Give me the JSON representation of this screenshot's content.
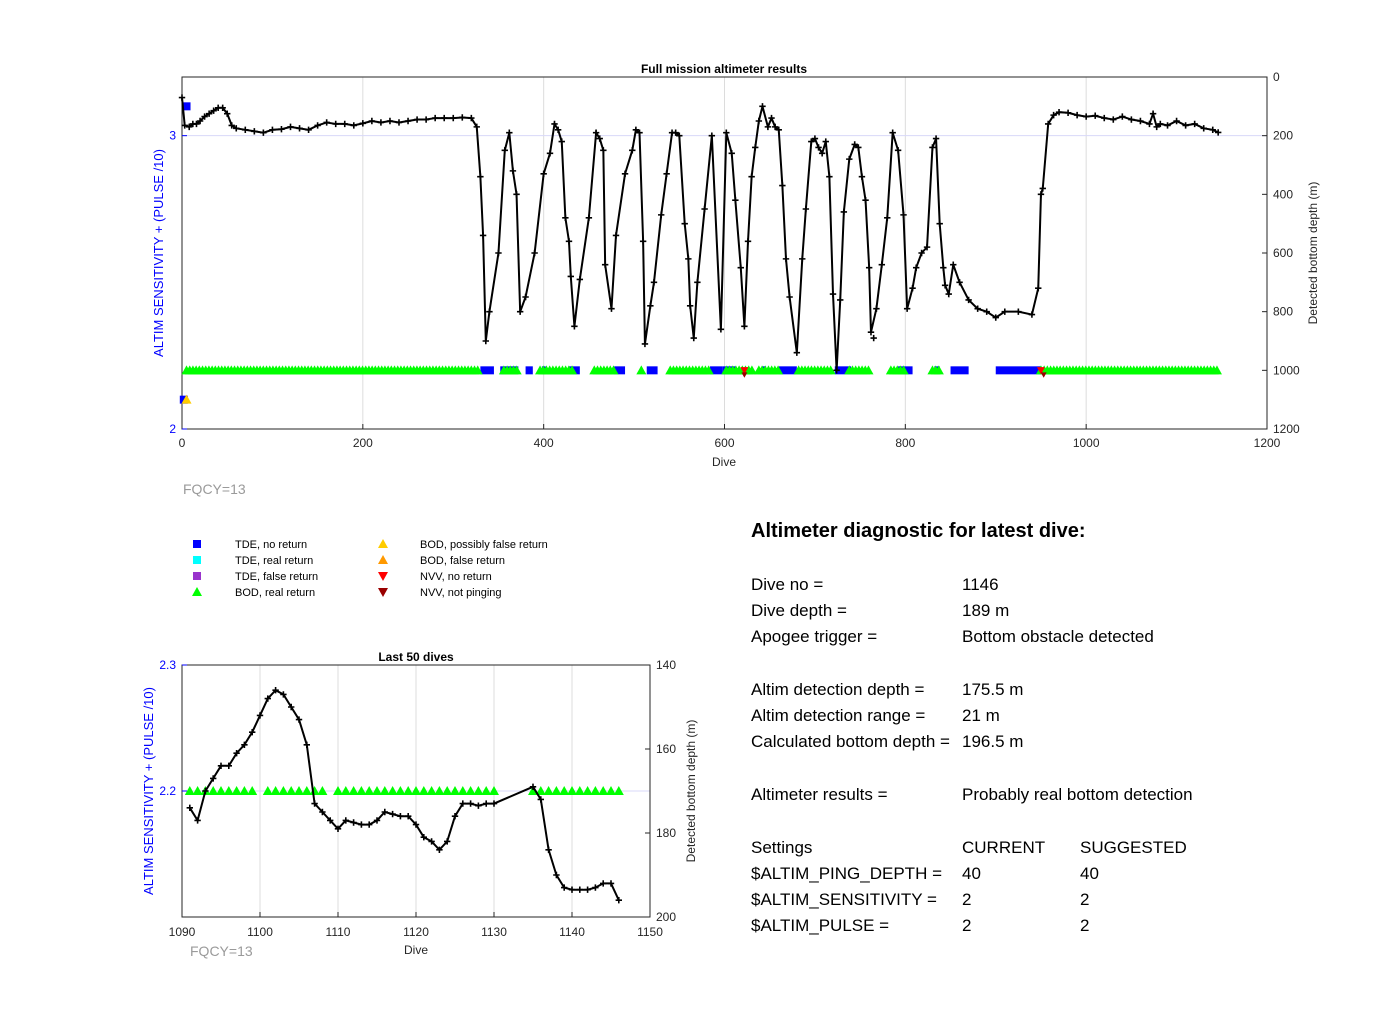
{
  "chart_data": [
    {
      "type": "line",
      "title": "Full mission altimeter results",
      "xlabel": "Dive",
      "ylabel_left": "ALTIM SENSITIVITY + (PULSE /10)",
      "ylabel_right": "Detected bottom depth (m)",
      "xlim": [
        0,
        1200
      ],
      "ylim_left": [
        2,
        3.2
      ],
      "ylim_right": [
        1200,
        0
      ],
      "x_ticks": [
        "0",
        "200",
        "400",
        "600",
        "800",
        "1000",
        "1200"
      ],
      "y_left_ticks": [
        "2",
        "3"
      ],
      "y_right_ticks": [
        "0",
        "200",
        "400",
        "600",
        "800",
        "1000",
        "1200"
      ],
      "grid": true,
      "footer": "FQCY=13",
      "depth_series": [
        [
          0,
          70
        ],
        [
          3,
          165
        ],
        [
          8,
          170
        ],
        [
          12,
          160
        ],
        [
          16,
          160
        ],
        [
          20,
          150
        ],
        [
          25,
          135
        ],
        [
          30,
          125
        ],
        [
          35,
          115
        ],
        [
          40,
          105
        ],
        [
          45,
          105
        ],
        [
          50,
          125
        ],
        [
          55,
          165
        ],
        [
          60,
          175
        ],
        [
          70,
          180
        ],
        [
          80,
          185
        ],
        [
          90,
          190
        ],
        [
          100,
          180
        ],
        [
          110,
          178
        ],
        [
          120,
          170
        ],
        [
          130,
          175
        ],
        [
          140,
          180
        ],
        [
          150,
          165
        ],
        [
          160,
          155
        ],
        [
          170,
          160
        ],
        [
          180,
          160
        ],
        [
          190,
          165
        ],
        [
          200,
          158
        ],
        [
          210,
          150
        ],
        [
          220,
          155
        ],
        [
          230,
          150
        ],
        [
          240,
          155
        ],
        [
          250,
          150
        ],
        [
          260,
          145
        ],
        [
          270,
          145
        ],
        [
          280,
          140
        ],
        [
          290,
          140
        ],
        [
          300,
          140
        ],
        [
          310,
          138
        ],
        [
          320,
          140
        ],
        [
          326,
          170
        ],
        [
          330,
          340
        ],
        [
          333,
          540
        ],
        [
          336,
          900
        ],
        [
          340,
          800
        ],
        [
          350,
          600
        ],
        [
          357,
          250
        ],
        [
          362,
          190
        ],
        [
          366,
          320
        ],
        [
          370,
          400
        ],
        [
          374,
          800
        ],
        [
          380,
          750
        ],
        [
          390,
          600
        ],
        [
          400,
          330
        ],
        [
          407,
          260
        ],
        [
          412,
          160
        ],
        [
          416,
          180
        ],
        [
          420,
          220
        ],
        [
          424,
          480
        ],
        [
          428,
          560
        ],
        [
          430,
          680
        ],
        [
          434,
          850
        ],
        [
          440,
          690
        ],
        [
          450,
          480
        ],
        [
          458,
          190
        ],
        [
          462,
          210
        ],
        [
          466,
          250
        ],
        [
          468,
          640
        ],
        [
          475,
          790
        ],
        [
          480,
          540
        ],
        [
          490,
          330
        ],
        [
          498,
          250
        ],
        [
          502,
          180
        ],
        [
          506,
          190
        ],
        [
          510,
          560
        ],
        [
          512,
          910
        ],
        [
          518,
          780
        ],
        [
          522,
          700
        ],
        [
          530,
          470
        ],
        [
          536,
          330
        ],
        [
          542,
          190
        ],
        [
          546,
          190
        ],
        [
          550,
          200
        ],
        [
          556,
          500
        ],
        [
          560,
          620
        ],
        [
          562,
          780
        ],
        [
          566,
          890
        ],
        [
          570,
          700
        ],
        [
          578,
          450
        ],
        [
          586,
          200
        ],
        [
          596,
          860
        ],
        [
          602,
          190
        ],
        [
          608,
          260
        ],
        [
          612,
          420
        ],
        [
          618,
          650
        ],
        [
          622,
          850
        ],
        [
          626,
          560
        ],
        [
          630,
          340
        ],
        [
          634,
          240
        ],
        [
          638,
          150
        ],
        [
          642,
          100
        ],
        [
          648,
          170
        ],
        [
          652,
          140
        ],
        [
          656,
          170
        ],
        [
          660,
          180
        ],
        [
          664,
          370
        ],
        [
          668,
          620
        ],
        [
          672,
          750
        ],
        [
          680,
          940
        ],
        [
          686,
          620
        ],
        [
          690,
          450
        ],
        [
          696,
          220
        ],
        [
          700,
          210
        ],
        [
          704,
          240
        ],
        [
          708,
          260
        ],
        [
          712,
          220
        ],
        [
          716,
          340
        ],
        [
          720,
          740
        ],
        [
          724,
          1000
        ],
        [
          728,
          760
        ],
        [
          732,
          460
        ],
        [
          738,
          280
        ],
        [
          744,
          230
        ],
        [
          748,
          240
        ],
        [
          752,
          340
        ],
        [
          756,
          420
        ],
        [
          760,
          650
        ],
        [
          762,
          870
        ],
        [
          768,
          790
        ],
        [
          774,
          640
        ],
        [
          780,
          480
        ],
        [
          786,
          190
        ],
        [
          792,
          250
        ],
        [
          798,
          470
        ],
        [
          802,
          790
        ],
        [
          808,
          720
        ],
        [
          812,
          650
        ],
        [
          818,
          600
        ],
        [
          824,
          580
        ],
        [
          830,
          240
        ],
        [
          834,
          210
        ],
        [
          838,
          500
        ],
        [
          842,
          650
        ],
        [
          844,
          710
        ],
        [
          848,
          740
        ],
        [
          853,
          640
        ],
        [
          860,
          700
        ],
        [
          870,
          760
        ],
        [
          880,
          790
        ],
        [
          890,
          800
        ],
        [
          900,
          820
        ],
        [
          910,
          800
        ],
        [
          925,
          800
        ],
        [
          940,
          810
        ],
        [
          947,
          720
        ],
        [
          950,
          400
        ],
        [
          952,
          380
        ],
        [
          958,
          160
        ],
        [
          964,
          130
        ],
        [
          970,
          120
        ],
        [
          980,
          122
        ],
        [
          990,
          130
        ],
        [
          1000,
          135
        ],
        [
          1010,
          132
        ],
        [
          1020,
          140
        ],
        [
          1030,
          145
        ],
        [
          1040,
          135
        ],
        [
          1050,
          145
        ],
        [
          1060,
          150
        ],
        [
          1070,
          160
        ],
        [
          1074,
          125
        ],
        [
          1078,
          170
        ],
        [
          1082,
          160
        ],
        [
          1090,
          165
        ],
        [
          1100,
          150
        ],
        [
          1110,
          165
        ],
        [
          1120,
          160
        ],
        [
          1130,
          175
        ],
        [
          1140,
          180
        ],
        [
          1146,
          189
        ]
      ],
      "markers": [
        {
          "label": "TDE, no return",
          "color": "#0000ff",
          "shape": "square"
        },
        {
          "label": "TDE, real return",
          "color": "#00ffff",
          "shape": "square"
        },
        {
          "label": "TDE, false return",
          "color": "#9933cc",
          "shape": "square"
        },
        {
          "label": "BOD, real return",
          "color": "#00ff00",
          "shape": "triangle-up"
        },
        {
          "label": "BOD, possibly false return",
          "color": "#ffcc00",
          "shape": "triangle-up"
        },
        {
          "label": "BOD, false return",
          "color": "#ff9900",
          "shape": "triangle-up"
        },
        {
          "label": "NVV, no return",
          "color": "#ff0000",
          "shape": "triangle-down"
        },
        {
          "label": "NVV, not pinging",
          "color": "#990000",
          "shape": "triangle-down"
        }
      ],
      "bod_real_segments": [
        [
          5,
          330
        ],
        [
          356,
          372
        ],
        [
          396,
          432
        ],
        [
          456,
          480
        ],
        [
          508,
          510
        ],
        [
          540,
          584
        ],
        [
          602,
          632
        ],
        [
          638,
          660
        ],
        [
          682,
          720
        ],
        [
          738,
          762
        ],
        [
          784,
          800
        ],
        [
          830,
          840
        ],
        [
          950,
          1146
        ]
      ],
      "tde_no_return_segments": [
        [
          330,
          345
        ],
        [
          352,
          372
        ],
        [
          380,
          388
        ],
        [
          398,
          402
        ],
        [
          428,
          440
        ],
        [
          478,
          490
        ],
        [
          514,
          526
        ],
        [
          584,
          598
        ],
        [
          598,
          612
        ],
        [
          642,
          646
        ],
        [
          660,
          680
        ],
        [
          722,
          740
        ],
        [
          792,
          808
        ],
        [
          832,
          838
        ],
        [
          850,
          870
        ],
        [
          900,
          950
        ]
      ],
      "tde_no_return_points": [
        [
          5,
          3.1
        ],
        [
          2,
          2.1
        ]
      ],
      "bod_possibly_false_points": [
        [
          5,
          2.1
        ]
      ],
      "nvv_no_return_points": [
        [
          622,
          2.2
        ],
        [
          950,
          2.2
        ]
      ],
      "nvv_not_pinging_points": [
        [
          622,
          2.195
        ],
        [
          953,
          2.195
        ]
      ],
      "extra_depth_points": [
        [
          765,
          890
        ]
      ]
    },
    {
      "type": "line",
      "title": "Last 50 dives",
      "xlabel": "Dive",
      "ylabel_left": "ALTIM SENSITIVITY + (PULSE /10)",
      "ylabel_right": "Detected bottom depth (m)",
      "xlim": [
        1090,
        1150
      ],
      "ylim_left": [
        2.1,
        2.3
      ],
      "ylim_right": [
        200,
        140
      ],
      "x_ticks": [
        "1090",
        "1100",
        "1110",
        "1120",
        "1130",
        "1140",
        "1150"
      ],
      "y_left_ticks": [
        "2.3",
        "2.2"
      ],
      "y_right_ticks": [
        "140",
        "160",
        "180",
        "200"
      ],
      "grid": true,
      "footer": "FQCY=13",
      "depth_series": [
        [
          1091,
          174
        ],
        [
          1092,
          177
        ],
        [
          1093,
          170
        ],
        [
          1094,
          167
        ],
        [
          1095,
          164
        ],
        [
          1096,
          164
        ],
        [
          1097,
          161
        ],
        [
          1098,
          159
        ],
        [
          1099,
          156
        ],
        [
          1100,
          152
        ],
        [
          1101,
          148
        ],
        [
          1102,
          146
        ],
        [
          1103,
          147
        ],
        [
          1104,
          150
        ],
        [
          1105,
          153
        ],
        [
          1106,
          159
        ],
        [
          1107,
          173
        ],
        [
          1108,
          175
        ],
        [
          1109,
          177
        ],
        [
          1110,
          179
        ],
        [
          1111,
          177
        ],
        [
          1112,
          177.5
        ],
        [
          1113,
          178
        ],
        [
          1114,
          178
        ],
        [
          1115,
          177
        ],
        [
          1116,
          175
        ],
        [
          1117,
          175.5
        ],
        [
          1118,
          176
        ],
        [
          1119,
          176
        ],
        [
          1120,
          178
        ],
        [
          1121,
          181
        ],
        [
          1122,
          182
        ],
        [
          1123,
          184
        ],
        [
          1124,
          182
        ],
        [
          1125,
          176
        ],
        [
          1126,
          173
        ],
        [
          1127,
          173
        ],
        [
          1128,
          173.5
        ],
        [
          1129,
          173
        ],
        [
          1130,
          173
        ],
        [
          1135,
          169
        ],
        [
          1136,
          172
        ],
        [
          1137,
          184
        ],
        [
          1138,
          190
        ],
        [
          1139,
          193
        ],
        [
          1140,
          193.5
        ],
        [
          1141,
          193.5
        ],
        [
          1142,
          193.5
        ],
        [
          1143,
          193
        ],
        [
          1144,
          192
        ],
        [
          1145,
          192
        ],
        [
          1146,
          196
        ]
      ],
      "bod_real_points": [
        1091,
        1092,
        1093,
        1094,
        1095,
        1096,
        1097,
        1098,
        1099,
        1101,
        1102,
        1103,
        1104,
        1105,
        1106,
        1107,
        1108,
        1110,
        1111,
        1112,
        1113,
        1114,
        1115,
        1116,
        1117,
        1118,
        1119,
        1120,
        1121,
        1122,
        1123,
        1124,
        1125,
        1126,
        1127,
        1128,
        1129,
        1130,
        1135,
        1136,
        1137,
        1138,
        1139,
        1140,
        1141,
        1142,
        1143,
        1144,
        1145,
        1146
      ],
      "bod_level": 2.2
    }
  ],
  "diagnostic": {
    "title": "Altimeter diagnostic for latest dive:",
    "rows": [
      {
        "label": "Dive no =",
        "value": "1146"
      },
      {
        "label": "Dive depth =",
        "value": "189 m"
      },
      {
        "label": "Apogee trigger =",
        "value": "Bottom obstacle detected"
      },
      {
        "label": "Altim detection depth =",
        "value": "175.5 m"
      },
      {
        "label": "Altim detection range =",
        "value": "21 m"
      },
      {
        "label": "Calculated bottom depth =",
        "value": "196.5 m"
      },
      {
        "label": "Altimeter results =",
        "value": "Probably real bottom detection"
      }
    ],
    "settings": {
      "header": {
        "label": "Settings",
        "current": "CURRENT",
        "suggested": "SUGGESTED"
      },
      "rows": [
        {
          "label": "$ALTIM_PING_DEPTH =",
          "current": "40",
          "suggested": "40"
        },
        {
          "label": "$ALTIM_SENSITIVITY =",
          "current": "2",
          "suggested": "2"
        },
        {
          "label": "$ALTIM_PULSE =",
          "current": "2",
          "suggested": "2"
        }
      ]
    }
  }
}
